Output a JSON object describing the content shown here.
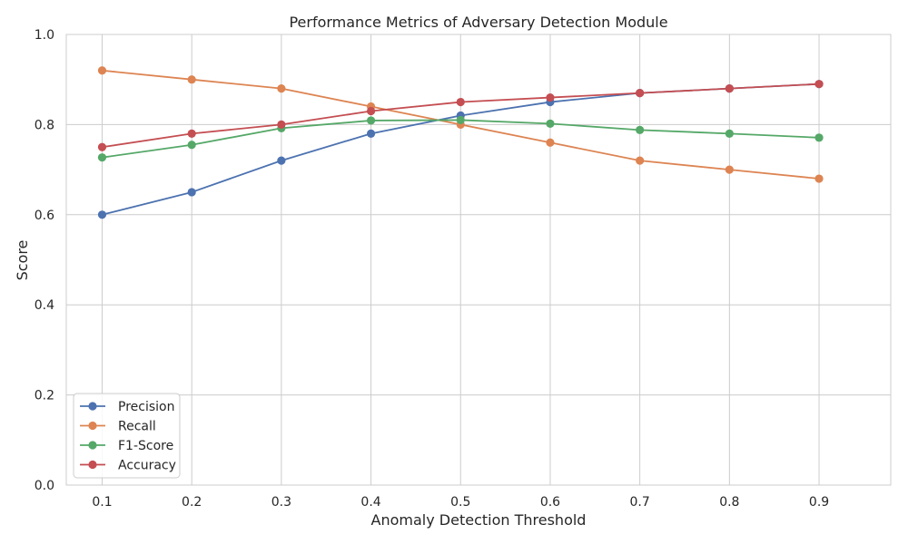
{
  "chart_data": {
    "type": "line",
    "title": "Performance Metrics of Adversary Detection Module",
    "xlabel": "Anomaly Detection Threshold",
    "ylabel": "Score",
    "x": [
      0.1,
      0.2,
      0.3,
      0.4,
      0.5,
      0.6,
      0.7,
      0.8,
      0.9
    ],
    "x_tick_labels": [
      "0.1",
      "0.2",
      "0.3",
      "0.4",
      "0.5",
      "0.6",
      "0.7",
      "0.8",
      "0.9"
    ],
    "y_ticks": [
      0.0,
      0.2,
      0.4,
      0.6,
      0.8,
      1.0
    ],
    "y_tick_labels": [
      "0.0",
      "0.2",
      "0.4",
      "0.6",
      "0.8",
      "1.0"
    ],
    "xlim": [
      0.06,
      0.98
    ],
    "ylim": [
      0.0,
      1.0
    ],
    "grid": true,
    "legend_position": "lower-left",
    "series": [
      {
        "name": "Precision",
        "color": "#4c72b0",
        "values": [
          0.6,
          0.65,
          0.72,
          0.78,
          0.82,
          0.85,
          0.87,
          0.88,
          0.89
        ]
      },
      {
        "name": "Recall",
        "color": "#dd8452",
        "values": [
          0.92,
          0.9,
          0.88,
          0.84,
          0.8,
          0.76,
          0.72,
          0.7,
          0.68
        ]
      },
      {
        "name": "F1-Score",
        "color": "#55a868",
        "values": [
          0.727,
          0.755,
          0.792,
          0.809,
          0.81,
          0.802,
          0.788,
          0.78,
          0.771
        ]
      },
      {
        "name": "Accuracy",
        "color": "#c44e52",
        "values": [
          0.75,
          0.78,
          0.8,
          0.83,
          0.85,
          0.86,
          0.87,
          0.88,
          0.89
        ]
      }
    ]
  }
}
